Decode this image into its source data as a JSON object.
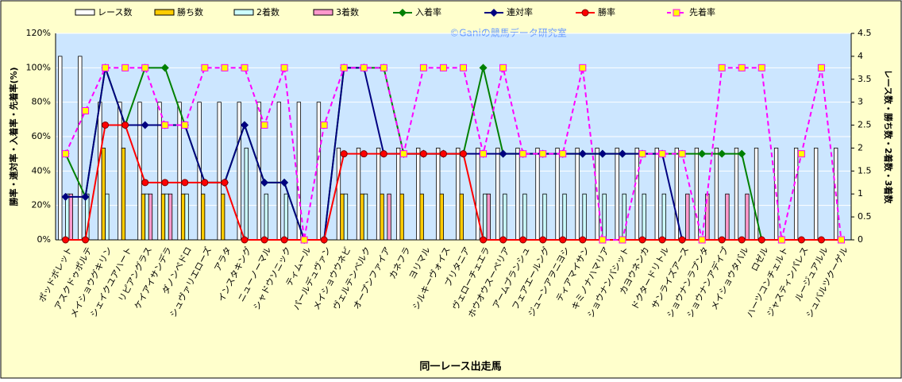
{
  "chart_data": {
    "type": "bar",
    "x_label": "同一レース出走馬",
    "y_label": "勝率・連対率・入着率・先着率(%)",
    "y2_label": "レース数・勝ち数・2着数・3着数",
    "watermark": "©Ganiの競馬データ研究室",
    "legend": "top",
    "grid": true,
    "categories": [
      "ポッドボレット",
      "アスクドゥポルテ",
      "メイショウグキリン",
      "シェイクユアハート",
      "リピアングラス",
      "ケイアイサンデラ",
      "ダノンペドロ",
      "シュヴァリエローズ",
      "アラタ",
      "インスタキング",
      "ニューノーマル",
      "シャドウソニック",
      "ティムール",
      "パールデュヴァン",
      "メイショウウネビ",
      "ヴェルテンベルク",
      "オープンファイア",
      "カネフラ",
      "ヨリマル",
      "シルキーヴォイス",
      "ブリタニア",
      "ヴェローチェエラ",
      "ホウオウスーペリア",
      "アームブランシュ",
      "フェアエールング",
      "ジューンアヲニヨシ",
      "ティアマイサン",
      "キミノナハマリア",
      "ショウナンバシット",
      "カヨウネンカ",
      "ドクタードリトル",
      "サンライズアース",
      "ショウナンラプンタ",
      "ショウナンアデイブ",
      "メイショウタバル",
      "ロゼル",
      "ハーツコンチェルト",
      "ジャスティンパレス",
      "ルージュアルル",
      "シュバルツクーゲル"
    ],
    "ylim": [
      0,
      120
    ],
    "yticks": [
      {
        "value": 0,
        "label": "0%"
      },
      {
        "value": 20,
        "label": "20%"
      },
      {
        "value": 40,
        "label": "40%"
      },
      {
        "value": 60,
        "label": "60%"
      },
      {
        "value": 80,
        "label": "80%"
      },
      {
        "value": 100,
        "label": "100%"
      },
      {
        "value": 120,
        "label": "120%"
      }
    ],
    "y2lim": [
      0,
      4.5
    ],
    "y2ticks": [
      0,
      0.5,
      1,
      1.5,
      2,
      2.5,
      3,
      3.5,
      4,
      4.5
    ],
    "series": [
      {
        "name": "レース数",
        "type": "bar",
        "axis": "y2",
        "color": "#ffffff",
        "values": [
          4,
          4,
          3,
          3,
          3,
          3,
          3,
          3,
          3,
          3,
          3,
          3,
          3,
          3,
          2,
          2,
          2,
          2,
          2,
          2,
          2,
          2,
          2,
          2,
          2,
          2,
          2,
          2,
          2,
          2,
          2,
          2,
          2,
          2,
          2,
          2,
          2,
          2,
          2,
          2
        ]
      },
      {
        "name": "勝ち数",
        "type": "bar",
        "axis": "y2",
        "color": "#ffcc00",
        "values": [
          0,
          0,
          2,
          2,
          1,
          1,
          1,
          1,
          1,
          0,
          0,
          0,
          0,
          0,
          1,
          1,
          1,
          1,
          1,
          1,
          1,
          0,
          0,
          0,
          0,
          0,
          0,
          0,
          0,
          0,
          0,
          0,
          0,
          0,
          0,
          0,
          0,
          0,
          0,
          0
        ]
      },
      {
        "name": "2着数",
        "type": "bar",
        "axis": "y2",
        "color": "#ccffff",
        "values": [
          1,
          1,
          1,
          0,
          1,
          1,
          1,
          0,
          0,
          2,
          1,
          1,
          0,
          0,
          1,
          1,
          0,
          0,
          0,
          0,
          0,
          1,
          1,
          1,
          1,
          1,
          1,
          1,
          1,
          1,
          1,
          0,
          0,
          0,
          0,
          0,
          0,
          0,
          0,
          0
        ]
      },
      {
        "name": "3着数",
        "type": "bar",
        "axis": "y2",
        "color": "#ff99cc",
        "values": [
          1,
          0,
          0,
          0,
          1,
          1,
          0,
          0,
          0,
          0,
          0,
          0,
          0,
          0,
          0,
          0,
          1,
          0,
          0,
          0,
          0,
          1,
          0,
          0,
          0,
          0,
          0,
          0,
          0,
          0,
          0,
          1,
          1,
          1,
          1,
          0,
          0,
          0,
          0,
          0
        ]
      },
      {
        "name": "入着率",
        "type": "line",
        "color": "#008000",
        "marker": "diamond",
        "values": [
          50,
          25,
          100,
          66.7,
          100,
          100,
          66.7,
          33.3,
          33.3,
          66.7,
          33.3,
          33.3,
          0,
          0,
          100,
          100,
          100,
          50,
          50,
          50,
          50,
          100,
          50,
          50,
          50,
          50,
          50,
          50,
          50,
          50,
          50,
          50,
          50,
          50,
          50,
          0,
          null,
          null,
          null,
          null
        ]
      },
      {
        "name": "連対率",
        "type": "line",
        "color": "#000080",
        "marker": "diamond",
        "values": [
          25,
          25,
          100,
          66.7,
          66.7,
          66.7,
          66.7,
          33.3,
          33.3,
          66.7,
          33.3,
          33.3,
          0,
          0,
          100,
          100,
          50,
          50,
          50,
          50,
          50,
          50,
          50,
          50,
          50,
          50,
          50,
          50,
          50,
          50,
          50,
          0,
          null,
          null,
          null,
          null,
          null,
          null,
          null,
          null
        ]
      },
      {
        "name": "勝率",
        "type": "line",
        "color": "#ff0000",
        "marker": "circle",
        "values": [
          0,
          0,
          66.7,
          66.7,
          33.3,
          33.3,
          33.3,
          33.3,
          33.3,
          0,
          0,
          0,
          0,
          0,
          50,
          50,
          50,
          50,
          50,
          50,
          50,
          0,
          0,
          0,
          0,
          0,
          0,
          0,
          0,
          0,
          0,
          0,
          0,
          0,
          0,
          0,
          0,
          0,
          0,
          0
        ]
      },
      {
        "name": "先着率",
        "type": "line",
        "color": "#ff00ff",
        "dashed": true,
        "marker": "square",
        "values": [
          50,
          75,
          100,
          100,
          100,
          66.7,
          66.7,
          100,
          100,
          100,
          66.7,
          100,
          0,
          66.7,
          100,
          100,
          100,
          50,
          100,
          100,
          100,
          50,
          100,
          50,
          50,
          50,
          100,
          0,
          0,
          50,
          50,
          50,
          0,
          100,
          100,
          100,
          0,
          50,
          100,
          0
        ]
      }
    ]
  }
}
